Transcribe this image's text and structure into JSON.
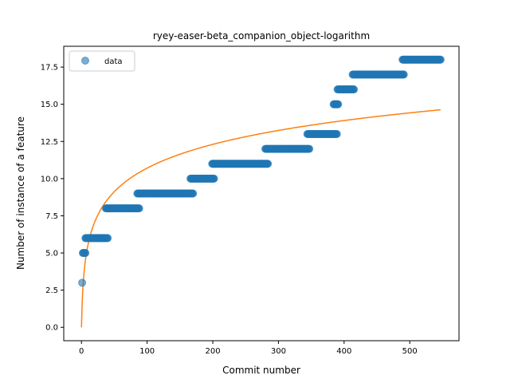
{
  "chart_data": {
    "type": "scatter",
    "title": "ryey-easer-beta_companion_object-logarithm",
    "xlabel": "Commit number",
    "ylabel": "Number of instance of a feature",
    "xlim": [
      -27,
      575
    ],
    "ylim": [
      -0.9,
      18.9
    ],
    "x_ticks": [
      0,
      100,
      200,
      300,
      400,
      500
    ],
    "x_tick_labels": [
      "0",
      "100",
      "200",
      "300",
      "400",
      "500"
    ],
    "y_ticks": [
      0.0,
      2.5,
      5.0,
      7.5,
      10.0,
      12.5,
      15.0,
      17.5
    ],
    "y_tick_labels": [
      "0.0",
      "2.5",
      "5.0",
      "7.5",
      "10.0",
      "12.5",
      "15.0",
      "17.5"
    ],
    "legend": {
      "position": "top-left",
      "entries": [
        "data"
      ]
    },
    "grid": false,
    "colors": {
      "data": "#1f77b4",
      "fit": "#ff7f0e"
    },
    "series": [
      {
        "name": "data",
        "kind": "scatter",
        "segments": [
          {
            "x_start": 1,
            "x_end": 1,
            "y": 3
          },
          {
            "x_start": 2,
            "x_end": 6,
            "y": 5
          },
          {
            "x_start": 6,
            "x_end": 40,
            "y": 6
          },
          {
            "x_start": 37,
            "x_end": 88,
            "y": 8
          },
          {
            "x_start": 85,
            "x_end": 170,
            "y": 9
          },
          {
            "x_start": 166,
            "x_end": 202,
            "y": 10
          },
          {
            "x_start": 199,
            "x_end": 284,
            "y": 11
          },
          {
            "x_start": 280,
            "x_end": 347,
            "y": 12
          },
          {
            "x_start": 344,
            "x_end": 389,
            "y": 13
          },
          {
            "x_start": 384,
            "x_end": 391,
            "y": 15
          },
          {
            "x_start": 390,
            "x_end": 415,
            "y": 16
          },
          {
            "x_start": 413,
            "x_end": 491,
            "y": 17
          },
          {
            "x_start": 489,
            "x_end": 547,
            "y": 18
          }
        ]
      },
      {
        "kind": "line",
        "function": "y = 2.32 * ln(x + 1)",
        "x_range": [
          0,
          547
        ]
      }
    ]
  }
}
